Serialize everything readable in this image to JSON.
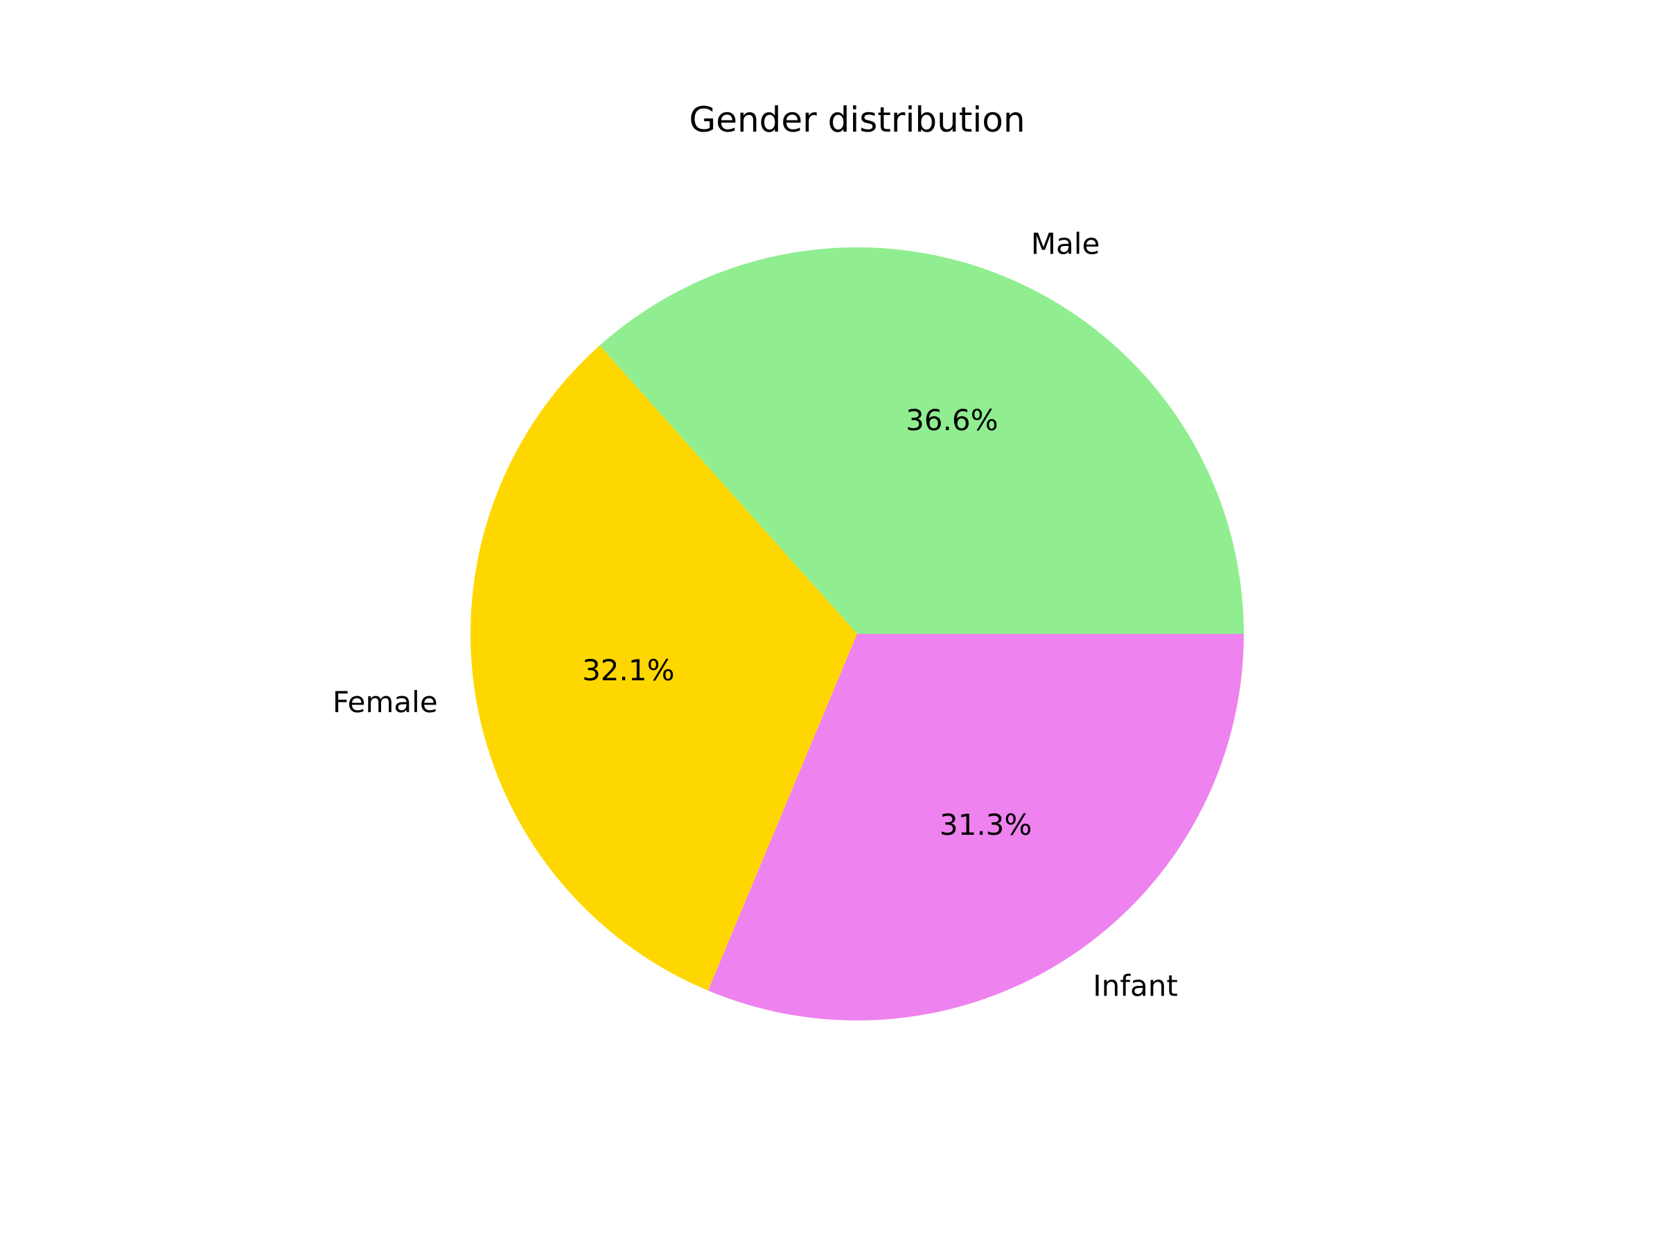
{
  "chart_data": {
    "type": "pie",
    "title": "Gender distribution",
    "categories": [
      "Male",
      "Female",
      "Infant"
    ],
    "values": [
      36.6,
      32.1,
      31.3
    ],
    "percent_labels": [
      "36.6%",
      "32.1%",
      "31.3%"
    ],
    "colors": [
      "#90ee90",
      "#ffd700",
      "#ee82ee"
    ],
    "start_angle_deg": 0,
    "direction": "counterclockwise"
  }
}
